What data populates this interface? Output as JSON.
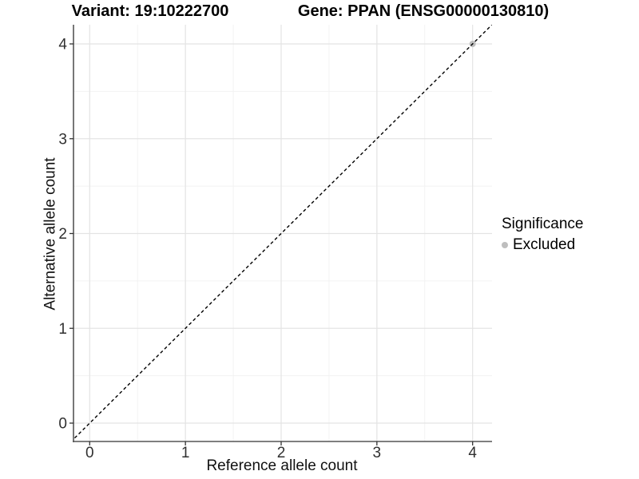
{
  "chart_data": {
    "type": "scatter",
    "titles": {
      "left": "Variant: 19:10222700",
      "right": "Gene: PPAN (ENSG00000130810)"
    },
    "xlabel": "Reference allele count",
    "ylabel": "Alternative allele count",
    "xlim": [
      -0.2,
      4.2
    ],
    "ylim": [
      -0.2,
      4.2
    ],
    "xtick_values": [
      0,
      1,
      2,
      3,
      4
    ],
    "xtick_labels": [
      "0",
      "1",
      "2",
      "3",
      "4"
    ],
    "ytick_values": [
      0,
      1,
      2,
      3,
      4
    ],
    "ytick_labels": [
      "0",
      "1",
      "2",
      "3",
      "4"
    ],
    "minor_tick_values": [
      0.5,
      1.5,
      2.5,
      3.5
    ],
    "grid": true,
    "identity_line": {
      "style": "dashed",
      "color": "#000000",
      "x1": -0.2,
      "y1": -0.2,
      "x2": 4.2,
      "y2": 4.2
    },
    "series": [
      {
        "name": "Excluded",
        "color": "#bebebe",
        "points": [
          {
            "x": 4,
            "y": 4
          }
        ]
      }
    ],
    "legend": {
      "title": "Significance",
      "position": "right",
      "items": [
        {
          "label": "Excluded",
          "color": "#bebebe"
        }
      ]
    },
    "style": {
      "grid_major_color": "#e4e4e4",
      "grid_minor_color": "#f2f2f2",
      "axis_line_color": "#555555",
      "tick_color": "#333333",
      "tick_label_color": "#303030",
      "panel_background": "#ffffff"
    }
  }
}
